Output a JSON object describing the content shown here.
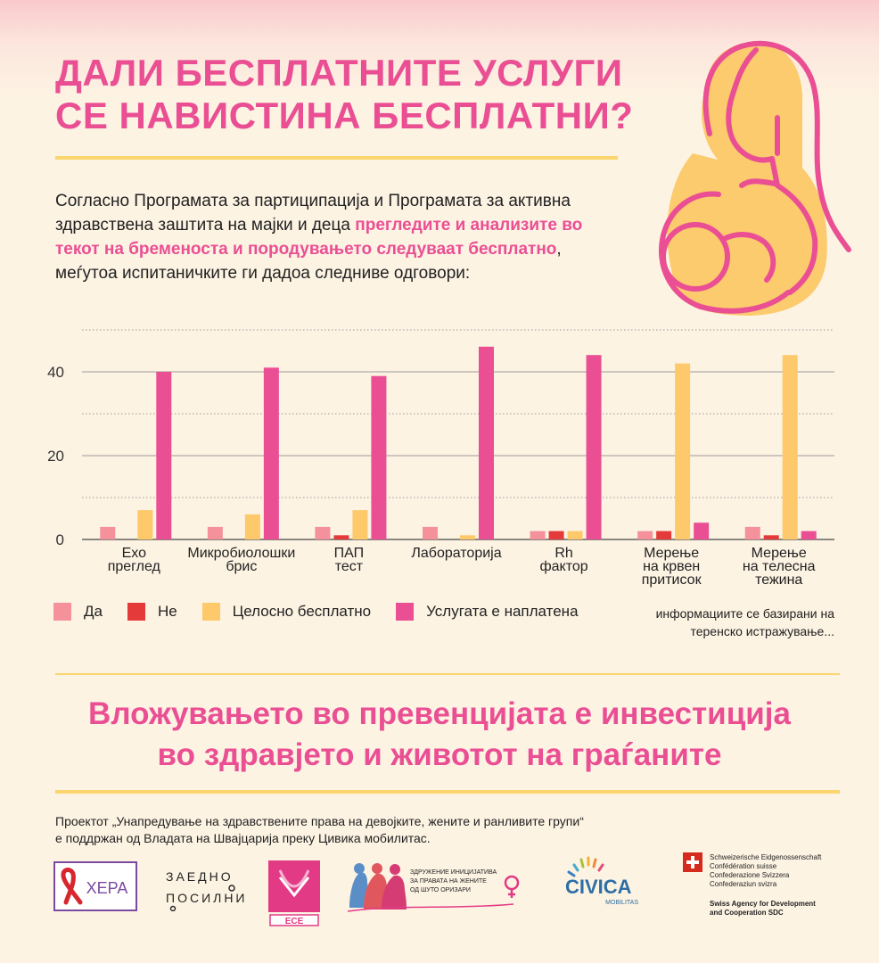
{
  "header": {
    "title_line1": "ДАЛИ БЕСПЛАТНИТЕ УСЛУГИ",
    "title_line2": "СЕ НАВИСТИНА БЕСПЛАТНИ?"
  },
  "intro": {
    "text_before": "Согласно Програмата за партиципација и Програмата за активна здравствена заштита на мајки и деца ",
    "highlight": "прегледите и анализите во текот на бременоста и породувањето следуваат бесплатно",
    "text_after": ", меѓутоа испитаничките ги дадоа следниве одговори:"
  },
  "chart_data": {
    "type": "bar",
    "categories": [
      [
        "Ехо",
        "преглед"
      ],
      [
        "Микробиолошки",
        "брис"
      ],
      [
        "ПАП",
        "тест"
      ],
      [
        "Лабораторија"
      ],
      [
        "Rh",
        "фактор"
      ],
      [
        "Мерење",
        "на крвен",
        "притисок"
      ],
      [
        "Мерење",
        "на телесна",
        "тежина"
      ]
    ],
    "series": [
      {
        "name": "Да",
        "color": "#f4919a",
        "values": [
          3,
          3,
          3,
          3,
          2,
          2,
          3
        ]
      },
      {
        "name": "Не",
        "color": "#e53a3a",
        "values": [
          0,
          0,
          1,
          0,
          2,
          2,
          1
        ]
      },
      {
        "name": "Целосно бесплатно",
        "color": "#fdc96b",
        "values": [
          7,
          6,
          7,
          1,
          2,
          42,
          44
        ]
      },
      {
        "name": "Услугата е наплатена",
        "color": "#ea4f94",
        "values": [
          40,
          41,
          39,
          46,
          44,
          4,
          2
        ]
      }
    ],
    "ylim": [
      0,
      50
    ],
    "yticks": [
      0,
      20,
      40
    ],
    "grid": true,
    "legend_position": "bottom"
  },
  "note": "информациите се базирани на теренско истражување...",
  "slogan": {
    "line1": "Вложувањето во превенцијата е инвестиција",
    "line2": "во здравјето и животот на граѓаните"
  },
  "footer": {
    "line1": "Проектот „Унапредување на здравствените права на девојките, жените и ранливите групи“",
    "line2": "е поддржан од Владата на Швајцарија преку Цивика мобилитас."
  },
  "logos": {
    "hera": "ХЕРА",
    "zaedno_1": "ЗАЕДНО",
    "zaedno_2": "ПОСИЛНИ",
    "ese": "ЕСЕ",
    "shuto_1": "ЗДРУЖЕНИЕ ИНИЦИЈАТИВА",
    "shuto_2": "ЗА ПРАВАТА НА ЖЕНИТЕ",
    "shuto_3": "ОД ШУТО ОРИЗАРИ",
    "civica_1": "CIVICA",
    "civica_2": "MOBILITAS",
    "swiss_1": "Schweizerische Eidgenossenschaft",
    "swiss_2": "Confédération suisse",
    "swiss_3": "Confederazione Svizzera",
    "swiss_4": "Confederaziun svizra",
    "swiss_5": "Swiss Agency for Development",
    "swiss_6": "and Cooperation SDC"
  },
  "colors": {
    "accent": "#ea4f94",
    "rule": "#fbd56d",
    "background": "#fdf3e3"
  }
}
